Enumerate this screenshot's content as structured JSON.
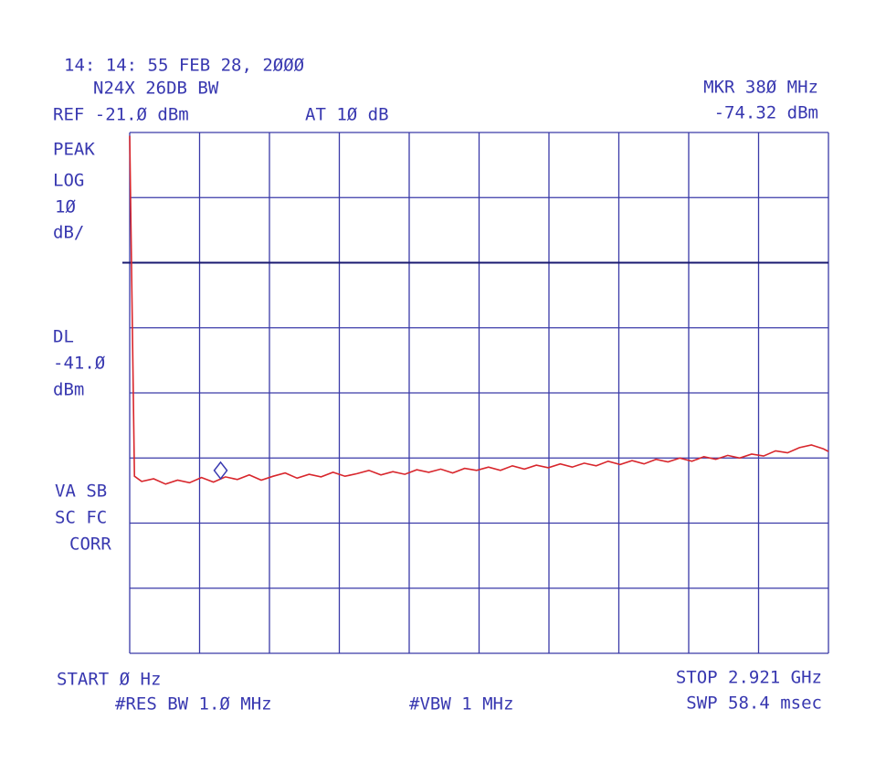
{
  "chart_data": {
    "type": "line",
    "timestamp": "14: 14: 55 FEB 28, 2ØØØ",
    "title": "N24X 26DB BW",
    "ref_level": "REF -21.Ø dBm",
    "attenuation": "AT 1Ø dB",
    "marker_freq_label": "MKR 38Ø MHz",
    "marker_level_label": "-74.32 dBm",
    "side_texts": [
      "PEAK",
      "LOG",
      "1Ø",
      "dB/",
      "DL",
      "-41.Ø",
      "dBm",
      "VA SB",
      "SC FC",
      "CORR"
    ],
    "start_label": "START Ø Hz",
    "stop_label": "STOP 2.921 GHz",
    "rbw_label": "#RES BW 1.Ø MHz",
    "vbw_label": "#VBW 1 MHz",
    "sweep_label": "SWP 58.4 msec",
    "xlim": [
      0,
      2921
    ],
    "xticks": [
      0,
      292.1,
      584.2,
      876.3,
      1168.4,
      1460.5,
      1752.6,
      2044.7,
      2336.8,
      2628.9,
      2921
    ],
    "ylim": [
      -101,
      -21
    ],
    "yticks": [
      -101,
      -91,
      -81,
      -71,
      -61,
      -51,
      -41,
      -31,
      -21
    ],
    "grid": true,
    "display_line": -41,
    "marker": {
      "x": 380,
      "y": -74.32
    },
    "series": [
      {
        "color": "#d8262c",
        "x": [
          0,
          20,
          50,
          100,
          150,
          200,
          250,
          300,
          350,
          400,
          450,
          500,
          550,
          600,
          650,
          700,
          750,
          800,
          850,
          900,
          950,
          1000,
          1050,
          1100,
          1150,
          1200,
          1250,
          1300,
          1350,
          1400,
          1450,
          1500,
          1550,
          1600,
          1650,
          1700,
          1750,
          1800,
          1850,
          1900,
          1950,
          2000,
          2050,
          2100,
          2150,
          2200,
          2250,
          2300,
          2350,
          2400,
          2450,
          2500,
          2550,
          2600,
          2650,
          2700,
          2750,
          2800,
          2850,
          2900,
          2921
        ],
        "values": [
          -21.5,
          -73.8,
          -74.6,
          -74.2,
          -75.0,
          -74.4,
          -74.8,
          -74.0,
          -74.7,
          -73.9,
          -74.3,
          -73.6,
          -74.4,
          -73.8,
          -73.3,
          -74.1,
          -73.5,
          -73.9,
          -73.2,
          -73.8,
          -73.4,
          -72.9,
          -73.6,
          -73.1,
          -73.5,
          -72.8,
          -73.2,
          -72.7,
          -73.3,
          -72.6,
          -72.9,
          -72.4,
          -72.9,
          -72.2,
          -72.7,
          -72.1,
          -72.5,
          -71.9,
          -72.4,
          -71.8,
          -72.2,
          -71.5,
          -72.0,
          -71.4,
          -71.9,
          -71.2,
          -71.6,
          -71.0,
          -71.5,
          -70.8,
          -71.2,
          -70.6,
          -71.0,
          -70.4,
          -70.7,
          -69.9,
          -70.2,
          -69.4,
          -69.0,
          -69.6,
          -70.0
        ]
      }
    ]
  }
}
